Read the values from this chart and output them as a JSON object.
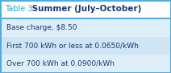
{
  "title_label": "Table 3",
  "title_bold": " Summer (July–October)",
  "rows": [
    "Base charge, $8.50",
    "First 700 kWh or less at 0.0650/kWh",
    "Over 700 kWh at 0.0900/kWh"
  ],
  "bg_white": "#ffffff",
  "bg_light_blue": "#deeef8",
  "bg_mid_blue": "#cce0f0",
  "border_color": "#55aadd",
  "title_color": "#22aadd",
  "title_bold_color": "#1a3a6e",
  "row_text_color": "#1a3a6e",
  "row_alt_colors": [
    "#deeef8",
    "#cfe5f3",
    "#deeef8"
  ],
  "figsize": [
    2.12,
    0.91
  ],
  "dpi": 100
}
